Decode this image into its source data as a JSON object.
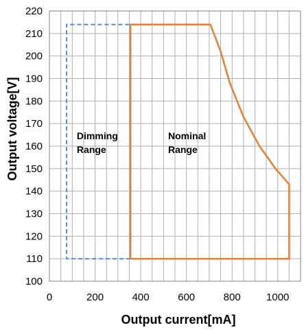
{
  "chart_data": {
    "type": "line",
    "title": "",
    "xlabel": "Output current[mA]",
    "ylabel": "Output voltage[V]",
    "xlim": [
      0,
      1100
    ],
    "ylim": [
      100,
      220
    ],
    "x_ticks": [
      0,
      200,
      400,
      600,
      800,
      1000
    ],
    "x_tick_labels": [
      "0",
      "200",
      "400",
      "600",
      "800",
      "1000"
    ],
    "y_ticks": [
      100,
      110,
      120,
      130,
      140,
      150,
      160,
      170,
      180,
      190,
      200,
      210,
      220
    ],
    "y_tick_labels": [
      "100",
      "110",
      "120",
      "130",
      "140",
      "150",
      "160",
      "170",
      "180",
      "190",
      "200",
      "210",
      "220"
    ],
    "x_minor_step": 50,
    "grid": true,
    "series": [
      {
        "color": "#4a90d9",
        "style": "dashed",
        "points": [
          [
            355,
            110
          ],
          [
            75,
            110
          ],
          [
            75,
            214
          ],
          [
            355,
            214
          ]
        ]
      },
      {
        "color": "#ed7d31",
        "style": "solid",
        "points": [
          [
            355,
            110
          ],
          [
            355,
            214
          ],
          [
            705,
            214
          ],
          [
            750,
            202
          ],
          [
            790,
            188
          ],
          [
            850,
            173
          ],
          [
            920,
            160
          ],
          [
            990,
            150
          ],
          [
            1050,
            143
          ],
          [
            1050,
            110
          ],
          [
            355,
            110
          ]
        ]
      }
    ],
    "annotations": [
      {
        "text": "Dimming",
        "x": 120,
        "y": 163
      },
      {
        "text": "Range",
        "x": 120,
        "y": 157
      },
      {
        "text": "Nominal",
        "x": 520,
        "y": 163
      },
      {
        "text": "Range",
        "x": 520,
        "y": 157
      }
    ]
  }
}
